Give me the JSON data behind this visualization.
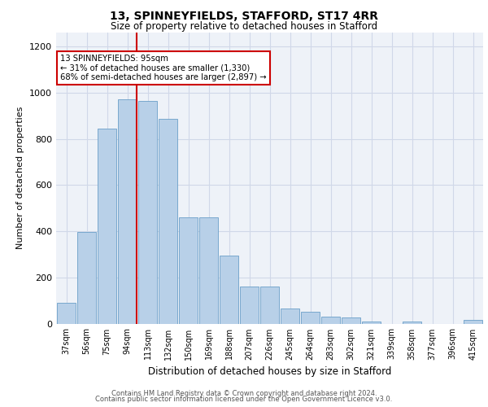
{
  "title_line1": "13, SPINNEYFIELDS, STAFFORD, ST17 4RR",
  "title_line2": "Size of property relative to detached houses in Stafford",
  "xlabel": "Distribution of detached houses by size in Stafford",
  "ylabel": "Number of detached properties",
  "categories": [
    "37sqm",
    "56sqm",
    "75sqm",
    "94sqm",
    "113sqm",
    "132sqm",
    "150sqm",
    "169sqm",
    "188sqm",
    "207sqm",
    "226sqm",
    "245sqm",
    "264sqm",
    "283sqm",
    "302sqm",
    "321sqm",
    "339sqm",
    "358sqm",
    "377sqm",
    "396sqm",
    "415sqm"
  ],
  "values": [
    90,
    395,
    845,
    970,
    965,
    885,
    460,
    460,
    295,
    160,
    160,
    65,
    50,
    30,
    28,
    10,
    0,
    10,
    0,
    0,
    15
  ],
  "bar_color": "#b8d0e8",
  "bar_edge_color": "#6a9fc8",
  "annotation_line1": "13 SPINNEYFIELDS: 95sqm",
  "annotation_line2": "← 31% of detached houses are smaller (1,330)",
  "annotation_line3": "68% of semi-detached houses are larger (2,897) →",
  "annotation_box_color": "#ffffff",
  "annotation_box_edge_color": "#cc0000",
  "vline_color": "#cc0000",
  "vline_x_index": 3,
  "ylim": [
    0,
    1260
  ],
  "yticks": [
    0,
    200,
    400,
    600,
    800,
    1000,
    1200
  ],
  "grid_color": "#d0d8e8",
  "bg_color": "#eef2f8",
  "footer_line1": "Contains HM Land Registry data © Crown copyright and database right 2024.",
  "footer_line2": "Contains public sector information licensed under the Open Government Licence v3.0."
}
